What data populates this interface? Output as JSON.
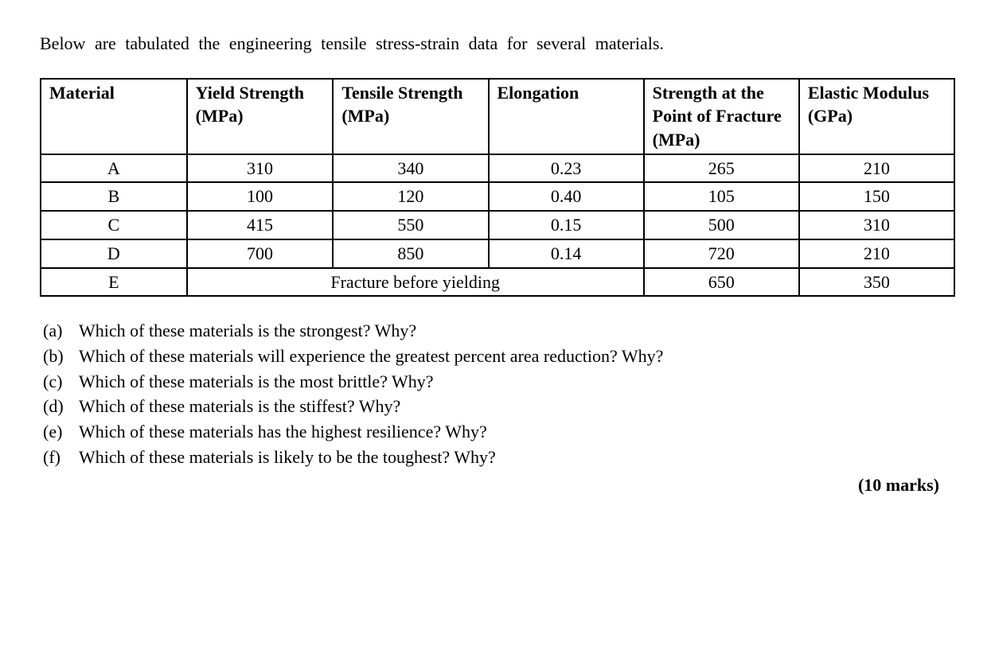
{
  "intro": "Below are tabulated the engineering tensile stress-strain data for several materials.",
  "table": {
    "headers": [
      "Material",
      "Yield Strength (MPa)",
      "Tensile Strength (MPa)",
      "Elongation",
      "Strength at the Point of Fracture (MPa)",
      "Elastic Modulus (GPa)"
    ],
    "rows": [
      {
        "material": "A",
        "yield": "310",
        "tensile": "340",
        "elong": "0.23",
        "fracture": "265",
        "modulus": "210"
      },
      {
        "material": "B",
        "yield": "100",
        "tensile": "120",
        "elong": "0.40",
        "fracture": "105",
        "modulus": "150"
      },
      {
        "material": "C",
        "yield": "415",
        "tensile": "550",
        "elong": "0.15",
        "fracture": "500",
        "modulus": "310"
      },
      {
        "material": "D",
        "yield": "700",
        "tensile": "850",
        "elong": "0.14",
        "fracture": "720",
        "modulus": "210"
      }
    ],
    "special_row": {
      "material": "E",
      "span_text": "Fracture before yielding",
      "fracture": "650",
      "modulus": "350"
    },
    "col_widths": [
      "16%",
      "16%",
      "17%",
      "17%",
      "17%",
      "17%"
    ]
  },
  "questions": [
    {
      "label": "(a)",
      "text": "Which of these materials is the strongest? Why?"
    },
    {
      "label": "(b)",
      "text": "Which of these materials will experience the greatest percent area reduction? Why?"
    },
    {
      "label": "(c)",
      "text": "Which of these materials is the most brittle? Why?"
    },
    {
      "label": "(d)",
      "text": "Which of these materials is the stiffest? Why?"
    },
    {
      "label": "(e)",
      "text": "Which of these materials has the highest resilience? Why?"
    },
    {
      "label": "(f)",
      "text": "Which of these materials is likely to be the toughest? Why?"
    }
  ],
  "marks": "(10 marks)"
}
